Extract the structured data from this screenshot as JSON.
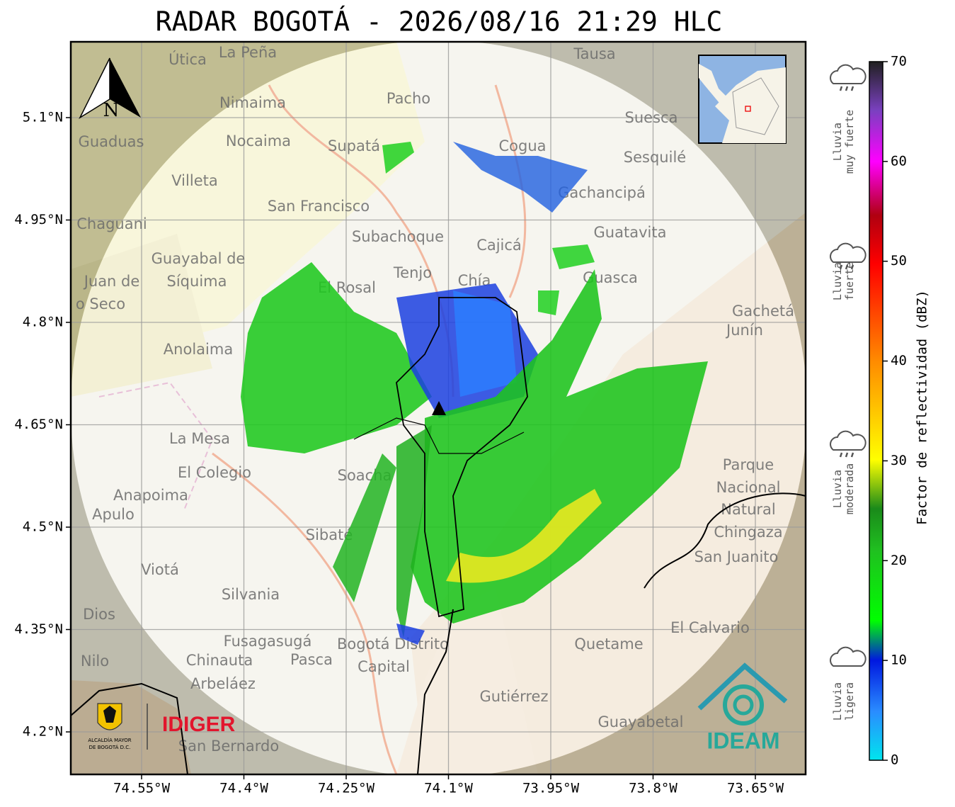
{
  "title": "RADAR BOGOTÁ - 2026/08/16 21:29 HLC",
  "map": {
    "lat_ticks": [
      {
        "value": 5.1,
        "label": "5.1°N"
      },
      {
        "value": 4.95,
        "label": "4.95°N"
      },
      {
        "value": 4.8,
        "label": "4.8°N"
      },
      {
        "value": 4.65,
        "label": "4.65°N"
      },
      {
        "value": 4.5,
        "label": "4.5°N"
      },
      {
        "value": 4.35,
        "label": "4.35°N"
      },
      {
        "value": 4.2,
        "label": "4.2°N"
      }
    ],
    "lon_ticks": [
      {
        "value": -74.55,
        "label": "74.55°W"
      },
      {
        "value": -74.4,
        "label": "74.4°W"
      },
      {
        "value": -74.25,
        "label": "74.25°W"
      },
      {
        "value": -74.1,
        "label": "74.1°W"
      },
      {
        "value": -73.95,
        "label": "73.95°W"
      },
      {
        "value": -73.8,
        "label": "73.8°W"
      },
      {
        "value": -73.65,
        "label": "73.65°W"
      }
    ],
    "north_arrow": "N",
    "places": [
      "Útica",
      "La Peña",
      "Tausa",
      "Pacho",
      "Nimaima",
      "Suesca",
      "Guaduas",
      "Nocaima",
      "Supatá",
      "Cogua",
      "Sesquilé",
      "Villeta",
      "Gachancipá",
      "San Francisco",
      "Chaguani",
      "Subachoque",
      "Guatavita",
      "Cajicá",
      "Guayabal de",
      "Síquima",
      "Tenjo",
      "Chía",
      "Guasca",
      "Juan de",
      "El Rosal",
      "o Seco",
      "Gachetá",
      "Junín",
      "Anolaima",
      "La Mesa",
      "Parque",
      "Nacional",
      "Natural",
      "Chingaza",
      "El Colegio",
      "Soacha",
      "Anapoima",
      "Apulo",
      "Sibaté",
      "Viotá",
      "San Juanito",
      "Silvania",
      "Dios",
      "El Calvario",
      "Fusagasugá",
      "Bogotá Distrito",
      "Capital",
      "Quetame",
      "Nilo",
      "Chinauta",
      "Pasca",
      "Arbeláez",
      "Gutiérrez",
      "Guayabetal",
      "San Bernardo"
    ],
    "logos": {
      "alcaldia": [
        "ALCALDÍA MAYOR",
        "DE BOGOTÁ D.C."
      ],
      "idiger": "IDIGER",
      "ideam": "IDEAM"
    }
  },
  "colorbar": {
    "label": "Factor de reflectividad (dBZ)",
    "ticks": [
      0,
      10,
      20,
      30,
      40,
      50,
      60,
      70
    ],
    "categories": [
      [
        "Lluvia",
        "muy fuerte"
      ],
      [
        "Lluvia",
        "fuerte"
      ],
      [
        "Lluvia",
        "moderada"
      ],
      [
        "Lluvia",
        "ligera"
      ]
    ]
  }
}
